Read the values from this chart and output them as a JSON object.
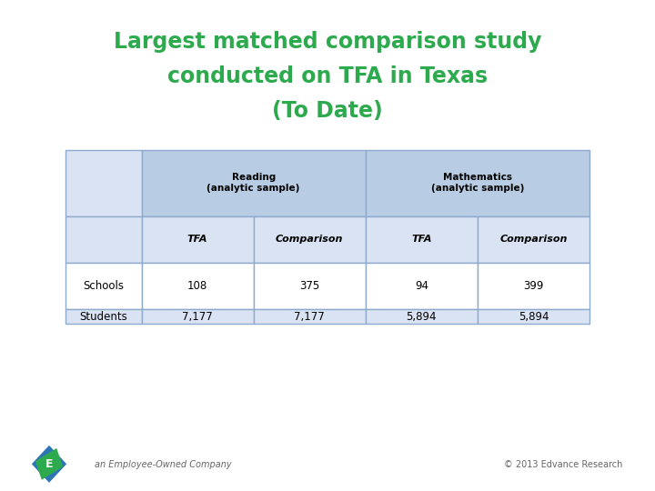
{
  "title_line1": "Largest matched comparison study",
  "title_line2": "conducted on TFA in Texas",
  "title_line3": "(To Date)",
  "title_color": "#2eaa4e",
  "bg_color": "#ffffff",
  "table": {
    "col_headers_row2": [
      "",
      "TFA",
      "Comparison",
      "TFA",
      "Comparison"
    ],
    "rows": [
      [
        "Schools",
        "108",
        "375",
        "94",
        "399"
      ],
      [
        "Students",
        "7,177",
        "7,177",
        "5,894",
        "5,894"
      ]
    ],
    "header_bg": "#b8cce4",
    "subheader_bg": "#dae3f3",
    "row1_bg": "#ffffff",
    "row2_bg": "#dae3f3",
    "border_color": "#8eaacc",
    "text_color": "#000000"
  },
  "footer_left": "an Employee-Owned Company",
  "footer_right": "© 2013 Edvance Research",
  "footer_color": "#666666"
}
